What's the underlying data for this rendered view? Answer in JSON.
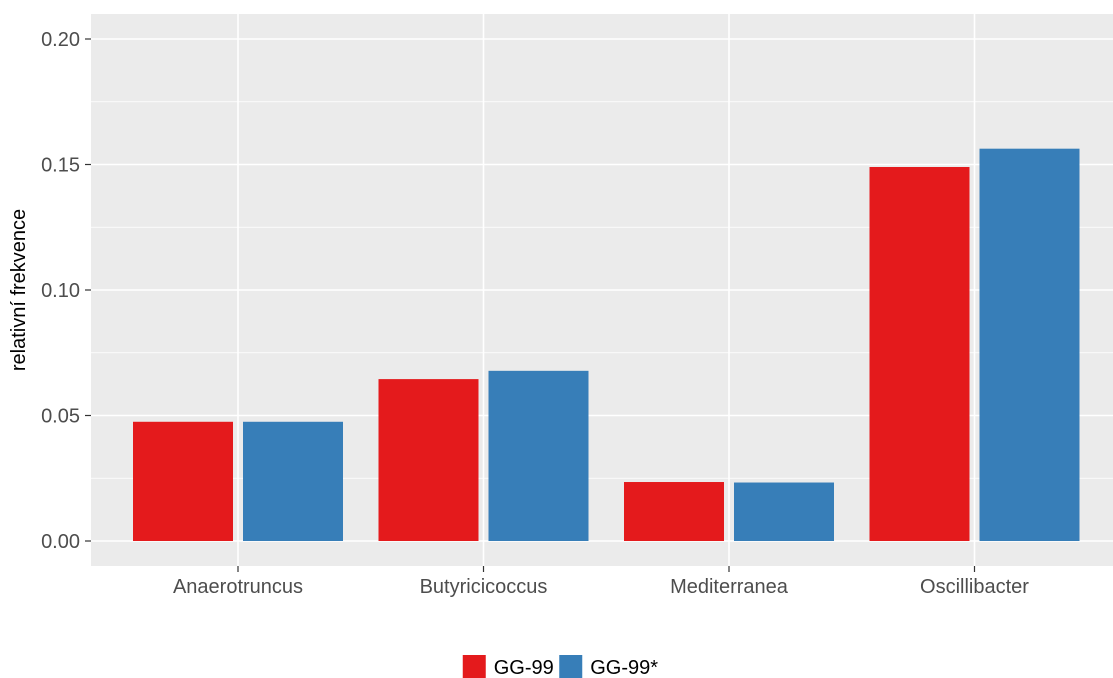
{
  "chart_data": {
    "type": "bar",
    "title": "",
    "xlabel": "",
    "ylabel": "relativní frekvence",
    "categories": [
      "Anaerotruncus",
      "Butyricicoccus",
      "Mediterranea",
      "Oscillibacter"
    ],
    "series": [
      {
        "name": "GG-99",
        "color": "#e41a1c",
        "values": [
          0.0475,
          0.0645,
          0.0235,
          0.149
        ]
      },
      {
        "name": "GG-99*",
        "color": "#377eb8",
        "values": [
          0.0475,
          0.0678,
          0.0233,
          0.1563
        ]
      }
    ],
    "ylim": [
      0,
      0.2
    ],
    "yticks": [
      "0.00",
      "0.05",
      "0.10",
      "0.15",
      "0.20"
    ],
    "grid": true,
    "legend_position": "bottom",
    "panel_background": "#ebebeb",
    "grid_color": "#ffffff"
  }
}
